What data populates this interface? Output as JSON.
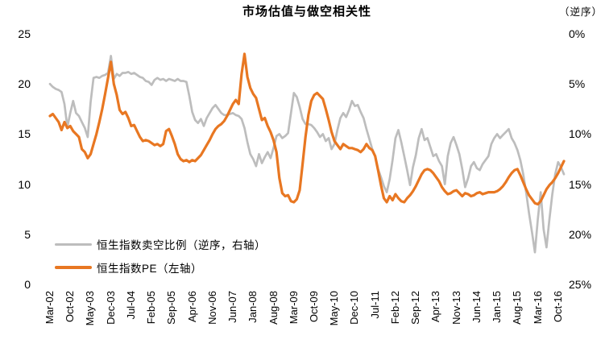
{
  "title": "市场估值与做空相关性",
  "reversed_note": "（逆序）",
  "colors": {
    "pe_line": "#E87722",
    "short_line": "#BDBDBD",
    "text": "#000000"
  },
  "legend": [
    {
      "label": "恒生指数卖空比例（逆序，右轴）",
      "series": "short_ratio"
    },
    {
      "label": "恒生指数PE（左轴）",
      "series": "pe"
    }
  ],
  "chart_data": {
    "type": "line",
    "title": "市场估值与做空相关性",
    "subtitle_note": "（逆序）",
    "x_start_month": "Mar-02",
    "x_end_month": "Dec-16",
    "x_frequency": "monthly",
    "x_tick_labels": [
      "Mar-02",
      "Oct-02",
      "May-03",
      "Dec-03",
      "Jul-04",
      "Feb-05",
      "Sep-05",
      "Apr-06",
      "Nov-06",
      "Jun-07",
      "Jan-08",
      "Aug-08",
      "Mar-09",
      "Oct-09",
      "May-10",
      "Dec-10",
      "Jul-11",
      "Feb-12",
      "Sep-12",
      "Apr-13",
      "Nov-13",
      "Jun-14",
      "Jan-15",
      "Aug-15",
      "Mar-16",
      "Oct-16"
    ],
    "x_tick_every_n_months": 7,
    "left_axis": {
      "ticks": [
        25,
        20,
        15,
        10,
        5,
        0
      ],
      "range": [
        0,
        25
      ],
      "label": "PE"
    },
    "right_axis": {
      "ticks": [
        "0%",
        "5%",
        "10%",
        "15%",
        "20%",
        "25%"
      ],
      "range_percent": [
        0,
        25
      ],
      "inverted": true
    },
    "grid": false,
    "legend_position": "bottom-left-inside",
    "series": [
      {
        "name": "恒生指数PE（左轴）",
        "axis": "left",
        "color": "#E87722",
        "values": [
          16.8,
          17.0,
          16.6,
          16.2,
          15.4,
          16.2,
          15.6,
          15.8,
          15.3,
          15.0,
          14.7,
          13.5,
          13.2,
          12.6,
          13.0,
          14.0,
          15.0,
          16.2,
          17.5,
          19.0,
          20.6,
          22.2,
          20.0,
          18.9,
          17.4,
          17.0,
          17.2,
          16.6,
          15.8,
          15.9,
          15.3,
          14.7,
          14.3,
          14.4,
          14.3,
          14.1,
          13.9,
          14.0,
          13.8,
          14.0,
          15.3,
          15.5,
          14.8,
          14.0,
          13.0,
          12.5,
          12.3,
          12.4,
          12.2,
          12.4,
          12.3,
          12.6,
          12.9,
          13.4,
          13.9,
          14.4,
          15.0,
          15.5,
          15.8,
          16.0,
          16.3,
          16.8,
          17.4,
          18.0,
          18.4,
          18.0,
          21.0,
          23.0,
          20.7,
          19.6,
          19.0,
          18.6,
          17.5,
          16.4,
          16.6,
          15.8,
          15.2,
          14.4,
          13.2,
          10.6,
          9.1,
          8.8,
          8.9,
          8.3,
          8.2,
          8.5,
          9.4,
          12.0,
          14.7,
          16.9,
          18.3,
          18.9,
          19.1,
          18.8,
          18.5,
          17.5,
          16.4,
          15.2,
          14.3,
          13.9,
          13.5,
          14.0,
          13.8,
          13.6,
          13.6,
          13.5,
          13.4,
          13.2,
          13.5,
          14.0,
          13.6,
          13.4,
          12.8,
          11.4,
          9.9,
          8.6,
          8.2,
          8.8,
          8.4,
          9.0,
          8.6,
          8.3,
          8.2,
          8.6,
          8.9,
          9.3,
          9.8,
          10.4,
          11.0,
          11.4,
          11.5,
          11.4,
          11.1,
          10.7,
          10.3,
          9.7,
          9.3,
          9.0,
          9.1,
          9.3,
          9.4,
          9.1,
          8.8,
          9.1,
          9.0,
          8.8,
          8.9,
          9.1,
          9.2,
          9.0,
          9.1,
          9.2,
          9.2,
          9.2,
          9.3,
          9.5,
          9.8,
          10.2,
          10.7,
          11.1,
          11.4,
          11.5,
          10.9,
          10.2,
          9.5,
          8.9,
          8.5,
          8.1,
          8.0,
          8.3,
          8.9,
          9.5,
          9.9,
          10.2,
          10.6,
          11.1,
          11.7,
          12.3
        ]
      },
      {
        "name": "恒生指数卖空比例（逆序，右轴）",
        "axis": "right",
        "unit": "%",
        "color": "#BDBDBD",
        "values": [
          5.0,
          5.3,
          5.5,
          5.6,
          5.8,
          7.0,
          9.3,
          7.9,
          6.7,
          7.9,
          8.2,
          8.8,
          9.4,
          10.3,
          6.8,
          4.4,
          4.3,
          4.4,
          4.2,
          4.1,
          3.9,
          2.2,
          4.5,
          4.0,
          4.2,
          3.9,
          3.9,
          3.8,
          4.0,
          3.9,
          4.1,
          4.3,
          4.4,
          4.7,
          4.8,
          5.1,
          4.6,
          4.4,
          4.6,
          4.5,
          4.7,
          4.5,
          4.6,
          4.7,
          4.5,
          4.7,
          4.7,
          4.8,
          6.2,
          7.8,
          8.6,
          8.9,
          8.5,
          9.2,
          8.4,
          7.9,
          7.4,
          7.1,
          7.5,
          7.9,
          8.1,
          8.1,
          8.0,
          7.9,
          8.1,
          8.2,
          8.5,
          9.4,
          10.8,
          12.0,
          12.5,
          13.2,
          12.0,
          12.9,
          12.3,
          11.8,
          12.4,
          11.4,
          10.2,
          10.0,
          10.4,
          10.2,
          9.9,
          7.9,
          5.9,
          6.3,
          7.3,
          8.5,
          9.0,
          9.0,
          9.1,
          9.4,
          9.8,
          10.3,
          10.0,
          10.7,
          10.4,
          11.5,
          11.0,
          9.6,
          8.4,
          7.9,
          8.3,
          7.6,
          6.7,
          7.2,
          7.1,
          7.8,
          8.4,
          9.5,
          10.5,
          11.5,
          12.2,
          13.5,
          14.3,
          15.2,
          15.8,
          14.5,
          12.6,
          10.4,
          9.6,
          10.8,
          12.2,
          13.6,
          15.1,
          13.3,
          12.1,
          10.4,
          9.5,
          10.6,
          10.4,
          11.3,
          12.2,
          12.0,
          12.7,
          13.2,
          15.0,
          12.2,
          10.9,
          10.3,
          11.1,
          12.0,
          13.5,
          15.3,
          14.4,
          13.2,
          12.8,
          13.4,
          13.6,
          13.0,
          12.6,
          12.2,
          11.0,
          10.4,
          10.0,
          10.4,
          10.1,
          9.8,
          9.5,
          10.4,
          10.9,
          11.6,
          12.6,
          14.0,
          15.8,
          17.9,
          19.8,
          21.8,
          18.5,
          15.8,
          19.5,
          21.3,
          18.5,
          16.0,
          14.0,
          12.8,
          13.3,
          14.0
        ]
      }
    ]
  }
}
